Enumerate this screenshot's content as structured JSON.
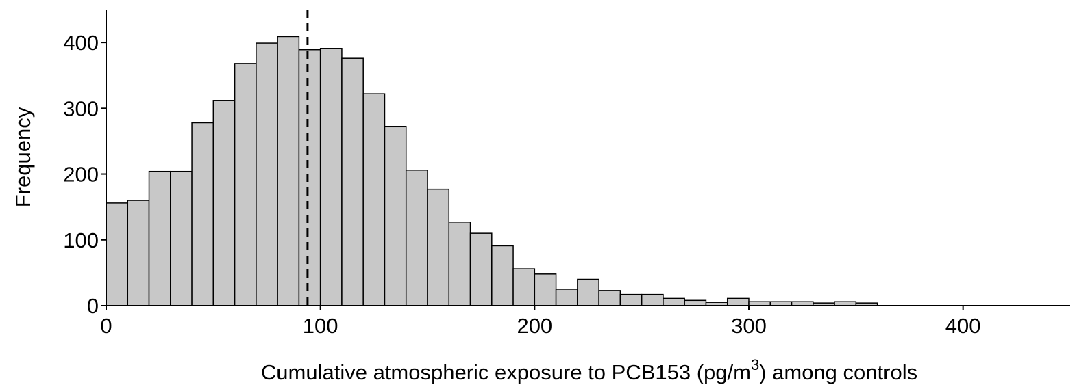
{
  "chart_data": {
    "type": "histogram",
    "xlabel": [
      "Cumulative atmospheric exposure to PCB153 (pg/m",
      "3",
      ") among controls"
    ],
    "ylabel": "Frequency",
    "bins": [
      0,
      10,
      20,
      30,
      40,
      50,
      60,
      70,
      80,
      90,
      100,
      110,
      120,
      130,
      140,
      150,
      160,
      170,
      180,
      190,
      200,
      210,
      220,
      230,
      240,
      250,
      260,
      270,
      280,
      290,
      300,
      310,
      320,
      330,
      340,
      350,
      360
    ],
    "values": [
      156,
      160,
      204,
      204,
      278,
      312,
      368,
      399,
      409,
      389,
      391,
      376,
      322,
      272,
      206,
      177,
      127,
      110,
      91,
      56,
      48,
      25,
      40,
      23,
      17,
      17,
      11,
      8,
      5,
      11,
      6,
      6,
      6,
      4,
      6,
      4
    ],
    "color": "#c8c8c8",
    "edge_color": "#000000",
    "vline": 94,
    "xlim": [
      0,
      450
    ],
    "ylim": [
      0,
      450
    ],
    "xticks": [
      0,
      100,
      200,
      300,
      400
    ],
    "yticks": [
      0,
      100,
      200,
      300,
      400
    ],
    "grid": false
  }
}
